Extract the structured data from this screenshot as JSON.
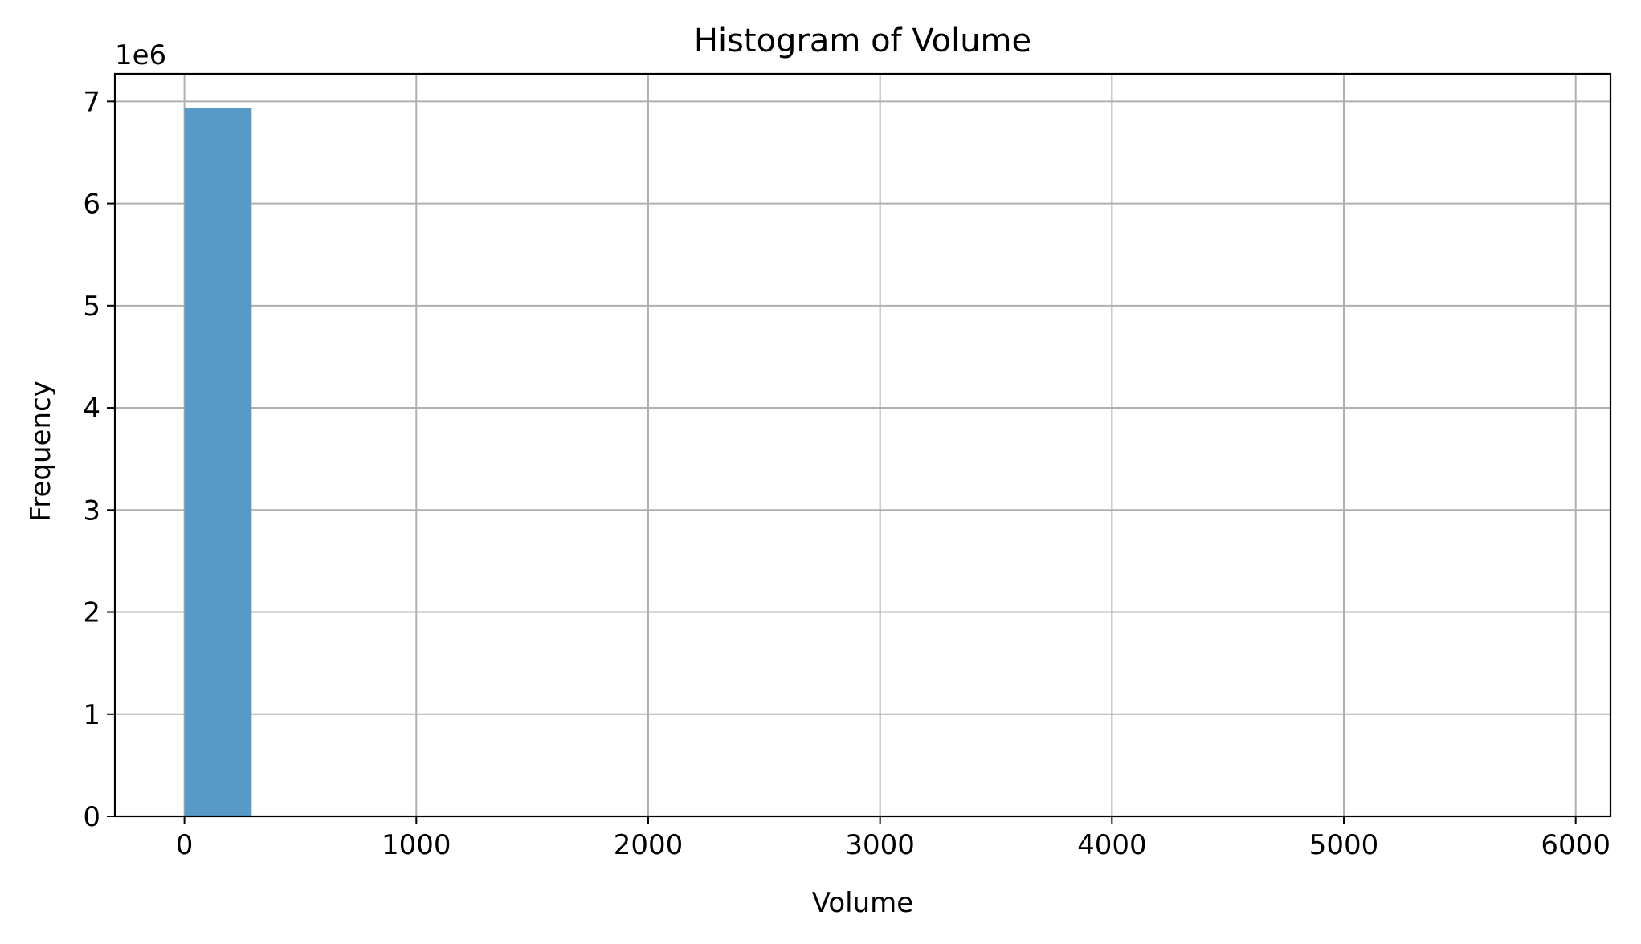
{
  "chart_data": {
    "type": "bar",
    "title": "Histogram of Volume",
    "xlabel": "Volume",
    "ylabel": "Frequency",
    "y_offset_text": "1e6",
    "y_scale": 1000000,
    "xlim": [
      -300,
      6150
    ],
    "ylim": [
      0,
      7270000
    ],
    "xticks": [
      0,
      1000,
      2000,
      3000,
      4000,
      5000,
      6000
    ],
    "xtick_labels": [
      "0",
      "1000",
      "2000",
      "3000",
      "4000",
      "5000",
      "6000"
    ],
    "yticks": [
      0,
      1000000,
      2000000,
      3000000,
      4000000,
      5000000,
      6000000,
      7000000
    ],
    "ytick_labels": [
      "0",
      "1",
      "2",
      "3",
      "4",
      "5",
      "6",
      "7"
    ],
    "grid": true,
    "bar_color": "#5799c7",
    "bins": [
      {
        "x0": 0,
        "x1": 290,
        "count": 6940000
      },
      {
        "x0": 290,
        "x1": 580,
        "count": 0
      },
      {
        "x0": 580,
        "x1": 870,
        "count": 0
      },
      {
        "x0": 870,
        "x1": 1160,
        "count": 0
      },
      {
        "x0": 1160,
        "x1": 1450,
        "count": 0
      },
      {
        "x0": 1450,
        "x1": 1740,
        "count": 0
      },
      {
        "x0": 1740,
        "x1": 2030,
        "count": 0
      },
      {
        "x0": 2030,
        "x1": 2320,
        "count": 0
      },
      {
        "x0": 2320,
        "x1": 2610,
        "count": 0
      },
      {
        "x0": 2610,
        "x1": 2900,
        "count": 0
      },
      {
        "x0": 2900,
        "x1": 3190,
        "count": 0
      },
      {
        "x0": 3190,
        "x1": 3480,
        "count": 0
      },
      {
        "x0": 3480,
        "x1": 3770,
        "count": 0
      },
      {
        "x0": 3770,
        "x1": 4060,
        "count": 0
      },
      {
        "x0": 4060,
        "x1": 4350,
        "count": 0
      },
      {
        "x0": 4350,
        "x1": 4640,
        "count": 0
      },
      {
        "x0": 4640,
        "x1": 4930,
        "count": 0
      },
      {
        "x0": 4930,
        "x1": 5220,
        "count": 0
      },
      {
        "x0": 5220,
        "x1": 5510,
        "count": 0
      },
      {
        "x0": 5510,
        "x1": 5800,
        "count": 0
      }
    ]
  }
}
